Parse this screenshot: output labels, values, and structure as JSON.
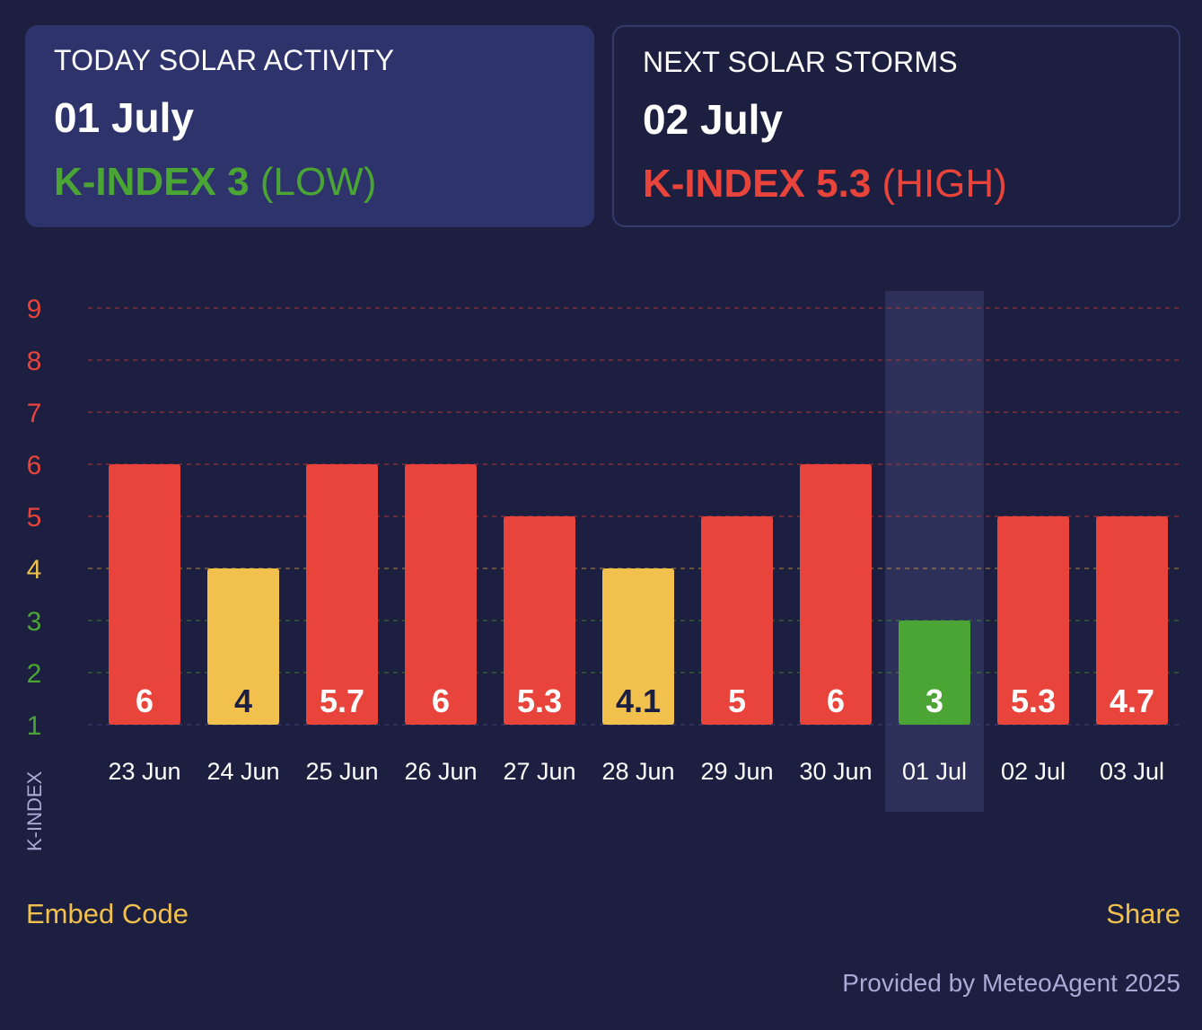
{
  "today": {
    "label": "TODAY SOLAR ACTIVITY",
    "date": "01 July",
    "kindex": "K-INDEX 3",
    "level": "(LOW)",
    "color": "#4aa535"
  },
  "next": {
    "label": "NEXT SOLAR STORMS",
    "date": "02 July",
    "kindex": "K-INDEX 5.3",
    "level": "(HIGH)",
    "color": "#e8443b"
  },
  "footer": {
    "embed": "Embed Code",
    "share": "Share",
    "credit": "Provided by MeteoAgent 2025"
  },
  "chart_data": {
    "type": "bar",
    "ylabel": "K-INDEX",
    "ylim": [
      1,
      9
    ],
    "yticks": [
      1,
      2,
      3,
      4,
      5,
      6,
      7,
      8,
      9
    ],
    "grid": "dashed",
    "highlighted_category": "01 Jul",
    "categories": [
      "23 Jun",
      "24 Jun",
      "25 Jun",
      "26 Jun",
      "27 Jun",
      "28 Jun",
      "29 Jun",
      "30 Jun",
      "01 Jul",
      "02 Jul",
      "03 Jul"
    ],
    "values": [
      6,
      4,
      6,
      6,
      5,
      4,
      5,
      6,
      3,
      5,
      5
    ],
    "labels": [
      "6",
      "4",
      "5.7",
      "6",
      "5.3",
      "4.1",
      "5",
      "6",
      "3",
      "5.3",
      "4.7"
    ],
    "bar_colors": [
      "#e8443b",
      "#f2c14d",
      "#e8443b",
      "#e8443b",
      "#e8443b",
      "#f2c14d",
      "#e8443b",
      "#e8443b",
      "#4aa535",
      "#e8443b",
      "#e8443b"
    ],
    "label_colors": [
      "#ffffff",
      "#1c1f40",
      "#ffffff",
      "#ffffff",
      "#ffffff",
      "#1c1f40",
      "#ffffff",
      "#ffffff",
      "#ffffff",
      "#ffffff",
      "#ffffff"
    ],
    "level_colors": {
      "low": "#4aa535",
      "moderate": "#f2c14d",
      "high": "#e8443b"
    }
  }
}
